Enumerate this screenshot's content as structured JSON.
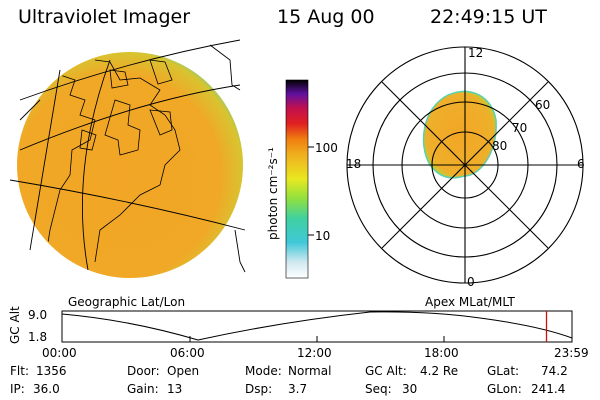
{
  "header": {
    "instrument": "Ultraviolet Imager",
    "date": "15 Aug 00",
    "time": "22:49:15 UT"
  },
  "colorbar": {
    "unit_label": "photon cm⁻²s⁻¹",
    "ticks": [
      "100",
      "10"
    ]
  },
  "polar": {
    "lat_labels": [
      "60",
      "70",
      "80"
    ],
    "mlt_labels": {
      "top": "12",
      "left": "18",
      "right": "6",
      "bottom": "0"
    }
  },
  "captions": {
    "left": "Geographic Lat/Lon",
    "right": "Apex MLat/MLT"
  },
  "orbit": {
    "axis_title": "GC Alt",
    "y_ticks": [
      "9.0",
      "1.8"
    ],
    "x_ticks": [
      "00:00",
      "06:00",
      "12:00",
      "18:00",
      "23:59"
    ],
    "current_time_fraction": 0.95,
    "marker_color": "#d01010"
  },
  "info": {
    "flt_label": "Flt:",
    "flt_value": "1356",
    "ip_label": "IP:",
    "ip_value": "36.0",
    "door_label": "Door:",
    "door_value": "Open",
    "gain_label": "Gain:",
    "gain_value": "13",
    "mode_label": "Mode:",
    "mode_value": "Normal",
    "dsp_label": "Dsp:",
    "dsp_value": "3.7",
    "gcalt_label": "GC Alt:",
    "gcalt_value": "4.2 Re",
    "seq_label": "Seq:",
    "seq_value": "30",
    "glat_label": "GLat:",
    "glat_value": "74.2",
    "glon_label": "GLon:",
    "glon_value": "241.4"
  },
  "colors": {
    "aurora_main": "#f2a526",
    "aurora_edge": "#c8dc32",
    "aurora_rim": "#3cc8b4"
  }
}
